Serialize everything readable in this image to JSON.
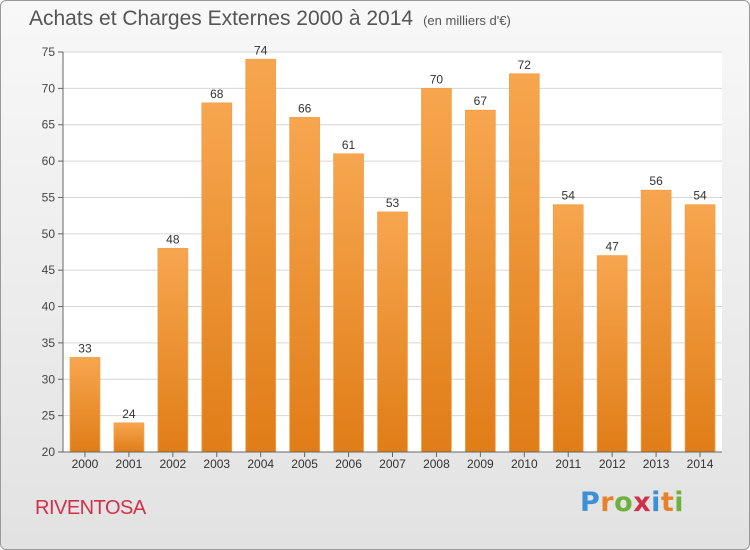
{
  "header": {
    "title": "Achats et Charges Externes 2000 à 2014",
    "subtitle": "(en milliers d'€)"
  },
  "footer": {
    "commune": "RIVENTOSA",
    "logo_text": "Proxiti"
  },
  "colors": {
    "bar_top": "#f7a64f",
    "bar_bottom": "#e07d17",
    "commune": "#d0304a",
    "logo_letters": [
      "#3d8fd6",
      "#e8822a",
      "#6db23a",
      "#d0304a",
      "#3d8fd6",
      "#e8822a",
      "#6db23a"
    ]
  },
  "chart_data": {
    "type": "bar",
    "categories": [
      "2000",
      "2001",
      "2002",
      "2003",
      "2004",
      "2005",
      "2006",
      "2007",
      "2008",
      "2009",
      "2010",
      "2011",
      "2012",
      "2013",
      "2014"
    ],
    "values": [
      33,
      24,
      48,
      68,
      74,
      66,
      61,
      53,
      70,
      67,
      72,
      54,
      47,
      56,
      54
    ],
    "ylim": [
      20,
      75
    ],
    "yticks": [
      20,
      25,
      30,
      35,
      40,
      45,
      50,
      55,
      60,
      65,
      70,
      75
    ],
    "grid": true,
    "legend": "none",
    "data_labels": true
  }
}
